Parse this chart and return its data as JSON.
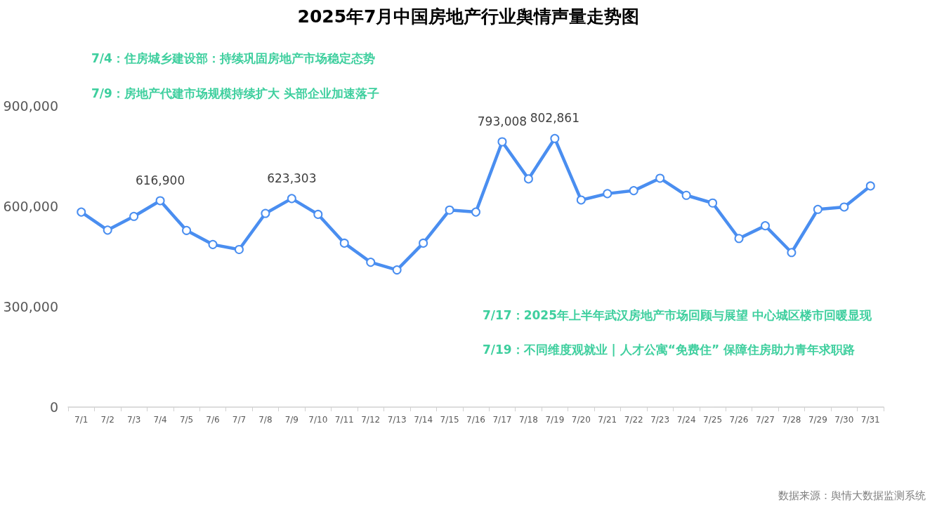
{
  "chart_data": {
    "type": "line",
    "title": "2025年7月中国房地产行业舆情声量走势图",
    "categories": [
      "7/1",
      "7/2",
      "7/3",
      "7/4",
      "7/5",
      "7/6",
      "7/7",
      "7/8",
      "7/9",
      "7/10",
      "7/11",
      "7/12",
      "7/13",
      "7/14",
      "7/15",
      "7/16",
      "7/17",
      "7/18",
      "7/19",
      "7/20",
      "7/21",
      "7/22",
      "7/23",
      "7/24",
      "7/25",
      "7/26",
      "7/27",
      "7/28",
      "7/29",
      "7/30",
      "7/31"
    ],
    "values": [
      583000,
      529000,
      570000,
      616900,
      528000,
      486000,
      471000,
      579000,
      623303,
      576000,
      490000,
      433000,
      410000,
      490000,
      589000,
      583000,
      793008,
      682000,
      802861,
      619000,
      638000,
      647000,
      684000,
      633000,
      610000,
      504000,
      542000,
      462000,
      591000,
      598000,
      661000
    ],
    "value_labels": [
      null,
      null,
      null,
      "616,900",
      null,
      null,
      null,
      null,
      "623,303",
      null,
      null,
      null,
      null,
      null,
      null,
      null,
      "793,008",
      null,
      "802,861",
      null,
      null,
      null,
      null,
      null,
      null,
      null,
      null,
      null,
      null,
      null,
      null
    ],
    "color": "#4a8ef0",
    "ylim": [
      0,
      900000
    ],
    "yticks": [
      0,
      {
        "value": 300000,
        "label": "300,000"
      },
      {
        "value": 600000,
        "label": "600,000"
      },
      {
        "value": 900000,
        "label": "900,000"
      }
    ],
    "grid": false,
    "marker": "circle",
    "line_style": "solid",
    "annotations": [
      "7/4：住房城乡建设部：持续巩固房地产市场稳定态势",
      "7/9：房地产代建市场规模持续扩大 头部企业加速落子",
      "7/17：2025年上半年武汉房地产市场回顾与展望 中心城区楼市回暖显现",
      "7/19：不同维度观就业 | 人才公寓“免费住” 保障住房助力青年求职路",
      "数据来源：舆情大数据监测系统"
    ]
  }
}
